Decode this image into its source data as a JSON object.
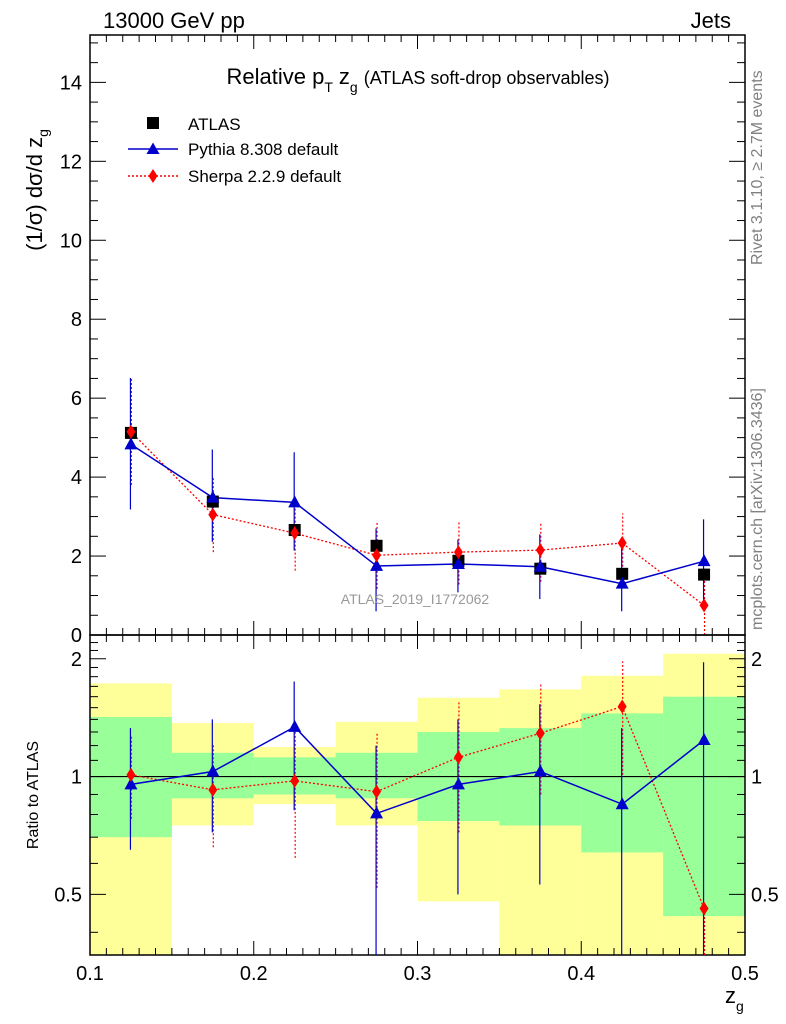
{
  "header": {
    "left": "13000 GeV pp",
    "right": "Jets"
  },
  "side_labels": {
    "rivet": "Rivet 3.1.10, ≥ 2.7M events",
    "mcplots": "mcplots.cern.ch [arXiv:1306.3436]"
  },
  "watermark": "ATLAS_2019_I1772062",
  "colors": {
    "data": "#000000",
    "pythia": "#0000cc",
    "sherpa": "#ff0000",
    "band_inner": "#99ff99",
    "band_outer": "#ffff99"
  },
  "chart_data": [
    {
      "type": "scatter",
      "panel": "main",
      "title_main": "Relative p",
      "title_sub": "T",
      "title_var": "z",
      "title_var_sub": "g",
      "title_rest": "(ATLAS soft-drop observables)",
      "ylabel_main": "(1/σ) dσ/d z",
      "ylabel_sub": "g",
      "xlim": [
        0.1,
        0.5
      ],
      "ylim": [
        0,
        15.2
      ],
      "yticks": [
        0,
        2,
        4,
        6,
        8,
        10,
        12,
        14
      ],
      "x": [
        0.125,
        0.175,
        0.225,
        0.275,
        0.325,
        0.375,
        0.425,
        0.475
      ],
      "legend": [
        "ATLAS",
        "Pythia 8.308 default",
        "Sherpa 2.2.9 default"
      ],
      "series": [
        {
          "name": "ATLAS",
          "style": "square",
          "values": [
            5.12,
            3.38,
            2.66,
            2.26,
            1.88,
            1.68,
            1.55,
            1.53
          ]
        },
        {
          "name": "Pythia 8.308 default",
          "style": "triangle-line",
          "values": [
            4.83,
            3.48,
            3.36,
            1.75,
            1.8,
            1.73,
            1.3,
            1.87
          ],
          "err_low": [
            1.65,
            1.12,
            1.22,
            1.15,
            0.72,
            0.82,
            0.7,
            1.25
          ],
          "err_high": [
            1.68,
            1.22,
            1.27,
            0.95,
            0.62,
            0.82,
            1.05,
            1.06
          ]
        },
        {
          "name": "Sherpa 2.2.9 default",
          "style": "diamond-dotted",
          "values": [
            5.15,
            3.05,
            2.58,
            2.02,
            2.1,
            2.15,
            2.33,
            0.75
          ],
          "err_low": [
            1.35,
            0.95,
            0.95,
            0.85,
            0.82,
            0.8,
            0.8,
            0.75
          ],
          "err_high": [
            1.35,
            0.95,
            0.75,
            0.82,
            0.75,
            0.72,
            0.75,
            0.7
          ]
        }
      ]
    },
    {
      "type": "scatter",
      "panel": "ratio",
      "ylabel": "Ratio to ATLAS",
      "xlabel_main": "z",
      "xlabel_sub": "g",
      "xlim": [
        0.1,
        0.5
      ],
      "ylim": [
        0.35,
        2.3
      ],
      "yticks": [
        0.5,
        1,
        2
      ],
      "ytick_labels": [
        "0.5",
        "1",
        "2"
      ],
      "xticks": [
        0.1,
        0.2,
        0.3,
        0.4,
        0.5
      ],
      "xtick_labels": [
        "0.1",
        "0.2",
        "0.3",
        "0.4",
        "0.5"
      ],
      "bins": [
        [
          0.1,
          0.15
        ],
        [
          0.15,
          0.2
        ],
        [
          0.2,
          0.25
        ],
        [
          0.25,
          0.3
        ],
        [
          0.3,
          0.35
        ],
        [
          0.35,
          0.4
        ],
        [
          0.4,
          0.45
        ],
        [
          0.45,
          0.5
        ]
      ],
      "band_inner": [
        [
          0.7,
          1.42
        ],
        [
          0.88,
          1.15
        ],
        [
          0.9,
          1.12
        ],
        [
          0.88,
          1.15
        ],
        [
          0.77,
          1.3
        ],
        [
          0.75,
          1.33
        ],
        [
          0.64,
          1.45
        ],
        [
          0.44,
          1.6
        ]
      ],
      "band_outer": [
        [
          0.35,
          1.73
        ],
        [
          0.75,
          1.37
        ],
        [
          0.85,
          1.19
        ],
        [
          0.75,
          1.38
        ],
        [
          0.48,
          1.59
        ],
        [
          0.35,
          1.67
        ],
        [
          0.35,
          1.81
        ],
        [
          0.35,
          2.06
        ]
      ],
      "x": [
        0.125,
        0.175,
        0.225,
        0.275,
        0.325,
        0.375,
        0.425,
        0.475
      ],
      "series": [
        {
          "name": "Pythia 8.308 default",
          "values": [
            0.955,
            1.03,
            1.34,
            0.805,
            0.955,
            1.03,
            0.85,
            1.24
          ],
          "err_low": [
            0.65,
            0.72,
            0.82,
            0.3,
            0.5,
            0.53,
            0.3,
            0.35
          ],
          "err_high": [
            1.33,
            1.4,
            1.75,
            1.2,
            1.4,
            1.53,
            1.33,
            1.96
          ]
        },
        {
          "name": "Sherpa 2.2.9 default",
          "values": [
            1.01,
            0.925,
            0.975,
            0.915,
            1.12,
            1.29,
            1.51,
            0.46
          ],
          "err_low": [
            0.78,
            0.66,
            0.62,
            0.52,
            0.72,
            0.9,
            1.01,
            0.35
          ],
          "err_high": [
            1.27,
            1.21,
            1.3,
            1.3,
            1.55,
            1.73,
            1.97,
            0.46
          ]
        }
      ]
    }
  ]
}
